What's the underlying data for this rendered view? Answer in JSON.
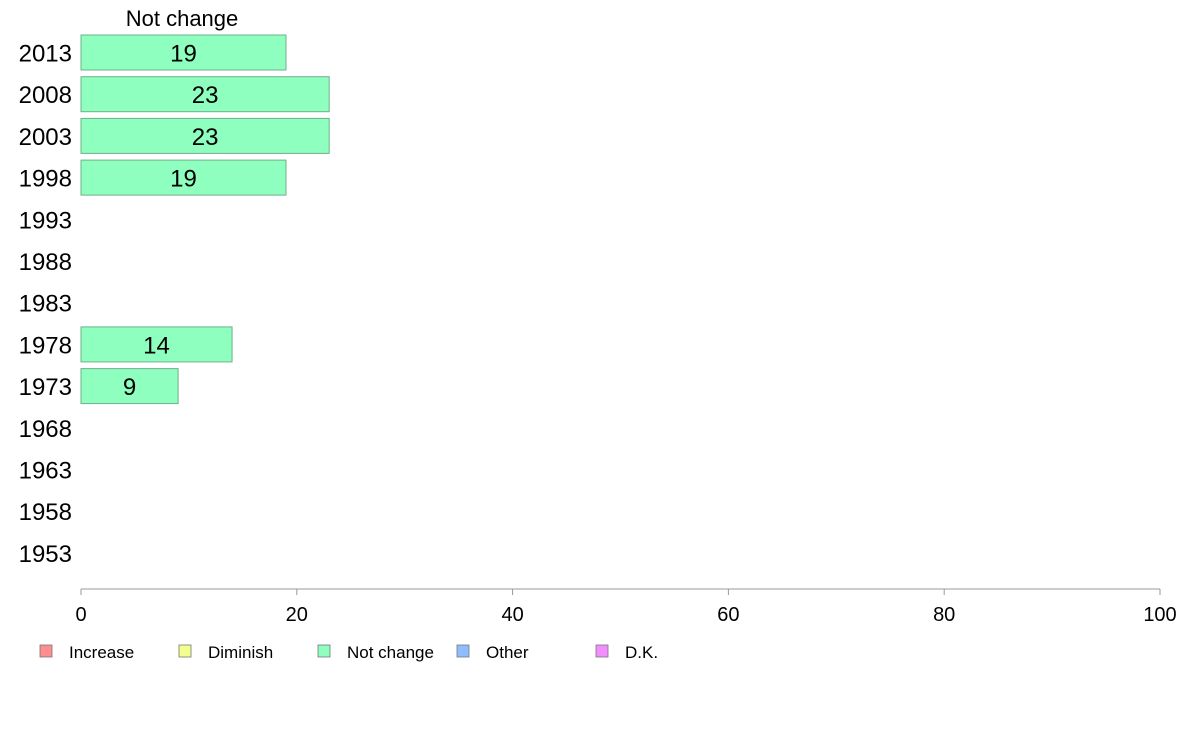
{
  "chart_data": {
    "type": "bar",
    "orientation": "horizontal",
    "column_header": "Not change",
    "categories": [
      "2013",
      "2008",
      "2003",
      "1998",
      "1993",
      "1988",
      "1983",
      "1978",
      "1973",
      "1968",
      "1963",
      "1958",
      "1953"
    ],
    "series": [
      {
        "name": "Not change",
        "color": "#8effbe",
        "values": [
          19,
          23,
          23,
          19,
          null,
          null,
          null,
          14,
          9,
          null,
          null,
          null,
          null
        ]
      }
    ],
    "xlim": [
      0,
      100
    ],
    "xticks": [
      0,
      20,
      40,
      60,
      80,
      100
    ],
    "grid": false,
    "legend_position": "bottom",
    "legend": [
      {
        "name": "Increase",
        "color": "#ff8e8e"
      },
      {
        "name": "Diminish",
        "color": "#f2ff8e"
      },
      {
        "name": "Not change",
        "color": "#8effbe"
      },
      {
        "name": "Other",
        "color": "#8ebeff"
      },
      {
        "name": "D.K.",
        "color": "#f28eff"
      }
    ]
  }
}
